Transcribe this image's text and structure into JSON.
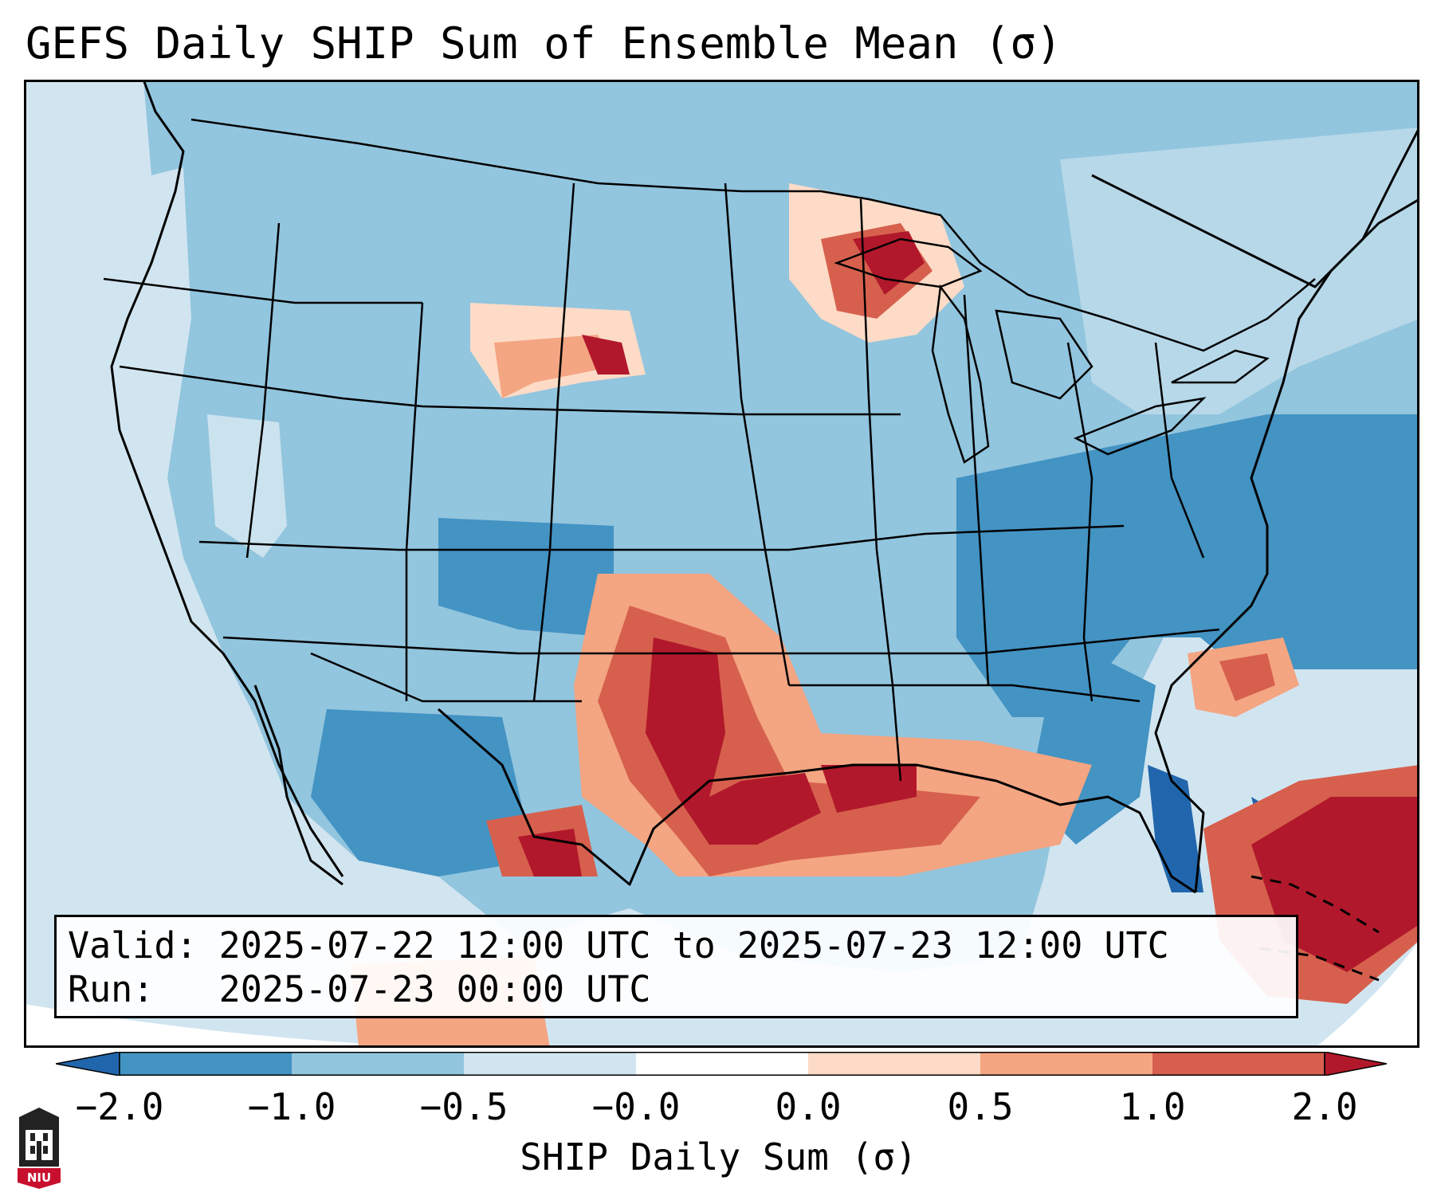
{
  "title": "GEFS Daily SHIP Sum of Ensemble Mean (σ)",
  "info": {
    "valid_label": "Valid:",
    "valid_value": "2025-07-22 12:00 UTC to 2025-07-23 12:00 UTC",
    "run_label": "Run:",
    "run_value": "2025-07-23 00:00 UTC"
  },
  "colorbar": {
    "label": "SHIP Daily Sum (σ)",
    "ticks": [
      "−2.0",
      "−1.0",
      "−0.5",
      "−0.0",
      "0.0",
      "0.5",
      "1.0",
      "2.0"
    ],
    "colors": [
      "#4393c3",
      "#92c5de",
      "#d1e5f0",
      "#fddbc7",
      "#f4a582",
      "#d6604d",
      "#b2182b"
    ],
    "under_color": "#2166ac",
    "over_color": "#b2182b"
  },
  "logo": {
    "text": "NIU",
    "color": "#c8102e"
  },
  "map": {
    "background": "#d1e5f0",
    "offmap_color": "#ffffff",
    "border_color": "#000000"
  }
}
